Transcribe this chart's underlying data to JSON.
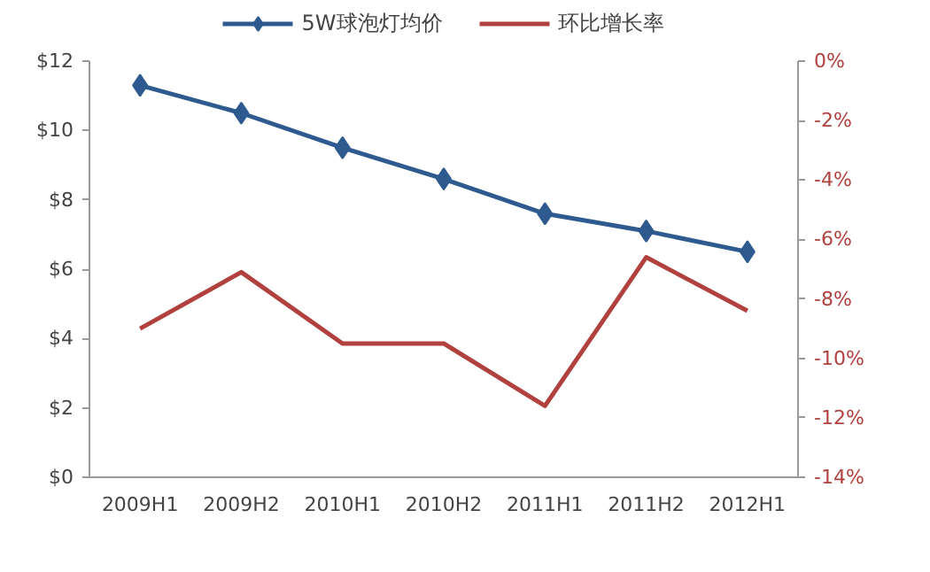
{
  "chart_data": {
    "type": "line",
    "categories": [
      "2009H1",
      "2009H2",
      "2010H1",
      "2010H2",
      "2011H1",
      "2011H2",
      "2012H1"
    ],
    "series": [
      {
        "name": "5W球泡灯均价",
        "color": "#2e5a8f",
        "marker": "diamond",
        "values": [
          11.3,
          10.5,
          9.5,
          8.6,
          7.6,
          7.1,
          6.5
        ]
      },
      {
        "name": "环比增长率",
        "color": "#b0413e",
        "marker": "none",
        "axis": "y2",
        "values": [
          -9.0,
          -7.1,
          -9.5,
          -9.5,
          -11.6,
          -6.6,
          -8.4
        ]
      }
    ],
    "ylim": [
      0,
      12
    ],
    "yticks": [
      {
        "value": 0,
        "label": "$0"
      },
      {
        "value": 2,
        "label": "$2"
      },
      {
        "value": 4,
        "label": "$4"
      },
      {
        "value": 6,
        "label": "$6"
      },
      {
        "value": 8,
        "label": "$8"
      },
      {
        "value": 10,
        "label": "$10"
      },
      {
        "value": 12,
        "label": "$12"
      }
    ],
    "y2lim": [
      -14,
      0
    ],
    "y2ticks": [
      {
        "value": -14,
        "label": "-14%"
      },
      {
        "value": -12,
        "label": "-12%"
      },
      {
        "value": -10,
        "label": "-10%"
      },
      {
        "value": -8,
        "label": "-8%"
      },
      {
        "value": -6,
        "label": "-6%"
      },
      {
        "value": -4,
        "label": "-4%"
      },
      {
        "value": -2,
        "label": "-2%"
      },
      {
        "value": 0,
        "label": "0%"
      }
    ],
    "grid": false,
    "legend": "top"
  }
}
